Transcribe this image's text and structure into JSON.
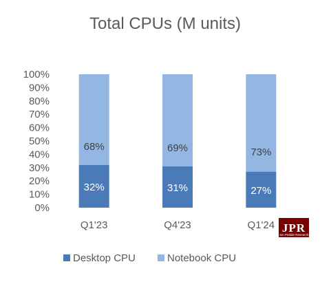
{
  "chart_data": {
    "type": "bar",
    "stacked": true,
    "percent_stacked": true,
    "title": "Total CPUs (M units)",
    "categories": [
      "Q1'23",
      "Q4'23",
      "Q1'24"
    ],
    "series": [
      {
        "name": "Desktop CPU",
        "values": [
          32,
          31,
          27
        ],
        "color": "#4a7ab8",
        "data_labels": [
          "32%",
          "31%",
          "27%"
        ]
      },
      {
        "name": "Notebook CPU",
        "values": [
          68,
          69,
          73
        ],
        "color": "#94b6e3",
        "data_labels": [
          "68%",
          "69%",
          "73%"
        ]
      }
    ],
    "y_ticks": [
      "0%",
      "10%",
      "20%",
      "30%",
      "40%",
      "50%",
      "60%",
      "70%",
      "80%",
      "90%",
      "100%"
    ],
    "ylim": [
      0,
      100
    ],
    "grid": false,
    "legend_position": "bottom"
  },
  "logo": {
    "text": "JPR",
    "subtext": "Jon Peddie Research"
  }
}
